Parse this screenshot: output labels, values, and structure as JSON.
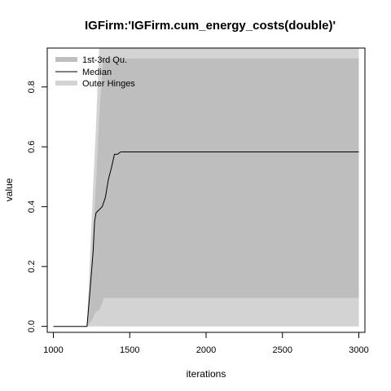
{
  "chart_data": {
    "type": "area",
    "title": "IGFirm:'IGFirm.cum_energy_costs(double)'",
    "xlabel": "iterations",
    "ylabel": "value",
    "xlim": [
      960,
      3040
    ],
    "ylim": [
      -0.02,
      0.93
    ],
    "x_ticks": [
      1000,
      1500,
      2000,
      2500,
      3000
    ],
    "x_tick_labels": [
      "1000",
      "1500",
      "2000",
      "2500",
      "3000"
    ],
    "y_ticks": [
      0.0,
      0.2,
      0.4,
      0.6,
      0.8
    ],
    "y_tick_labels": [
      "0.0",
      "0.2",
      "0.4",
      "0.6",
      "0.8"
    ],
    "grid": false,
    "legend_position": "top-left",
    "colors": {
      "outer_hinges": "#d3d3d3",
      "quartiles": "#bebebe",
      "median": "#000000"
    },
    "series": [
      {
        "name": "Outer Hinges",
        "role": "band",
        "x": [
          1000,
          1220,
          1250,
          1280,
          1300,
          1310,
          1400,
          1500,
          2000,
          3000
        ],
        "lower": [
          0,
          0,
          0,
          0,
          0,
          0,
          0,
          0,
          0,
          0
        ],
        "upper": [
          0,
          0,
          0.35,
          0.68,
          0.95,
          0.95,
          0.95,
          0.95,
          0.95,
          0.95
        ]
      },
      {
        "name": "1st-3rd Qu.",
        "role": "band",
        "x": [
          1000,
          1220,
          1250,
          1280,
          1300,
          1320,
          1330,
          1400,
          1500,
          2000,
          3000
        ],
        "lower": [
          0,
          0,
          0.02,
          0.05,
          0.055,
          0.08,
          0.095,
          0.095,
          0.095,
          0.095,
          0.095
        ],
        "upper": [
          0,
          0,
          0.2,
          0.48,
          0.7,
          0.85,
          0.895,
          0.895,
          0.895,
          0.895,
          0.895
        ]
      },
      {
        "name": "Median",
        "role": "line",
        "x": [
          1000,
          1220,
          1240,
          1260,
          1270,
          1280,
          1300,
          1320,
          1340,
          1360,
          1380,
          1400,
          1420,
          1440,
          1500,
          2000,
          3000
        ],
        "values": [
          0,
          0,
          0.12,
          0.25,
          0.35,
          0.38,
          0.39,
          0.4,
          0.43,
          0.49,
          0.53,
          0.575,
          0.575,
          0.583,
          0.583,
          0.583,
          0.583
        ]
      }
    ]
  }
}
